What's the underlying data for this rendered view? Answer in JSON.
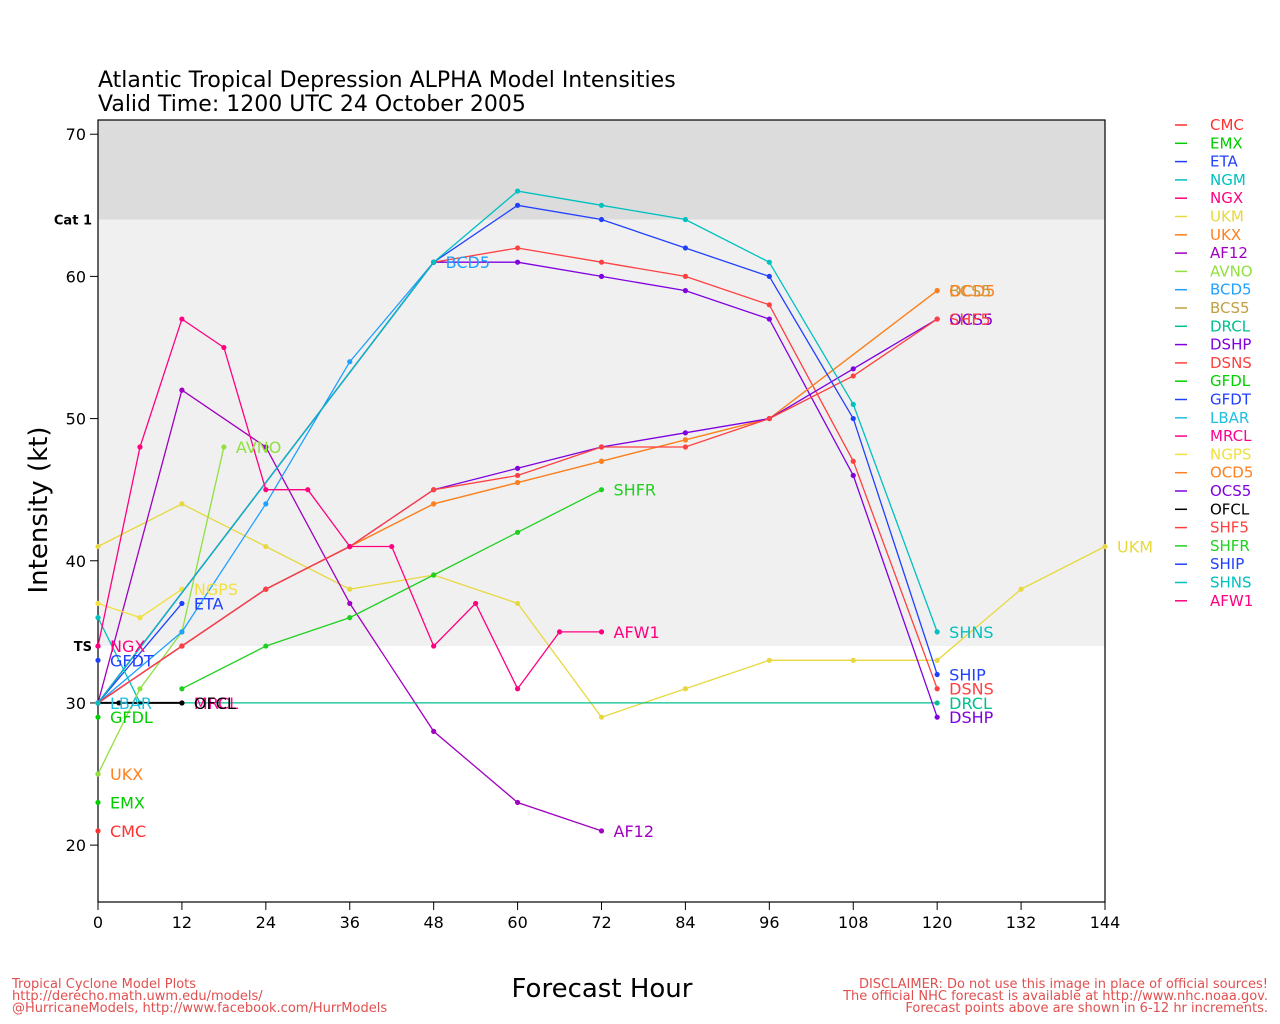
{
  "title": {
    "line1": "Atlantic Tropical Depression ALPHA Model Intensities",
    "line2": "Valid Time: 1200 UTC 24 October 2005"
  },
  "footer": {
    "left": [
      "Tropical Cyclone Model Plots",
      "http://derecho.math.uwm.edu/models/",
      "@HurricaneModels, http://www.facebook.com/HurrModels"
    ],
    "right": [
      "DISCLAIMER: Do not use this image in place of official sources!",
      "The official NHC forecast is available at http://www.nhc.noaa.gov.",
      "Forecast points above are shown in 6-12 hr increments."
    ]
  },
  "chart_data": {
    "type": "line",
    "title": "Atlantic Tropical Depression ALPHA Model Intensities",
    "subtitle": "Valid Time: 1200 UTC 24 October 2005",
    "xlabel": "Forecast Hour",
    "ylabel": "Intensity (kt)",
    "xlim": [
      0,
      144
    ],
    "ylim": [
      16,
      71
    ],
    "xticks": [
      0,
      12,
      24,
      36,
      48,
      60,
      72,
      84,
      96,
      108,
      120,
      132,
      144
    ],
    "yticks": [
      20,
      30,
      40,
      50,
      60,
      70
    ],
    "bands": [
      {
        "label": "Cat 1",
        "from": 64,
        "to": 71,
        "color": "#dcdcdc"
      },
      {
        "label": "TS",
        "from": 34,
        "to": 64,
        "color": "#f0f0f0"
      }
    ],
    "legend_position": "right",
    "series": [
      {
        "name": "CMC",
        "color": "#ff3030",
        "end_label": "CMC",
        "points": [
          [
            0,
            21
          ]
        ]
      },
      {
        "name": "EMX",
        "color": "#00cc00",
        "end_label": "EMX",
        "points": [
          [
            0,
            23
          ]
        ]
      },
      {
        "name": "ETA",
        "color": "#2040ff",
        "end_label": "ETA",
        "points": [
          [
            0,
            30
          ],
          [
            12,
            37
          ]
        ]
      },
      {
        "name": "NGM",
        "color": "#00c0c0",
        "end_label": "",
        "points": [
          [
            0,
            36
          ],
          [
            6,
            30
          ]
        ]
      },
      {
        "name": "NGX",
        "color": "#ff0080",
        "end_label": "NGX",
        "points": [
          [
            0,
            34
          ]
        ]
      },
      {
        "name": "UKM",
        "color": "#e8d840",
        "end_label": "UKM",
        "points": [
          [
            0,
            41
          ],
          [
            12,
            44
          ],
          [
            24,
            41
          ],
          [
            36,
            38
          ],
          [
            48,
            39
          ],
          [
            60,
            37
          ],
          [
            72,
            29
          ],
          [
            84,
            31
          ],
          [
            96,
            33
          ],
          [
            108,
            33
          ],
          [
            120,
            33
          ],
          [
            132,
            38
          ],
          [
            144,
            41
          ]
        ]
      },
      {
        "name": "UKX",
        "color": "#ff8020",
        "end_label": "UKX",
        "points": [
          [
            0,
            25
          ]
        ]
      },
      {
        "name": "AF12",
        "color": "#a000c0",
        "end_label": "AF12",
        "points": [
          [
            0,
            30
          ],
          [
            12,
            52
          ],
          [
            24,
            48
          ],
          [
            36,
            37
          ],
          [
            48,
            28
          ],
          [
            60,
            23
          ],
          [
            72,
            21
          ]
        ]
      },
      {
        "name": "AVNO",
        "color": "#90e040",
        "end_label": "AVNO",
        "points": [
          [
            0,
            25
          ],
          [
            6,
            31
          ],
          [
            12,
            35
          ],
          [
            18,
            48
          ]
        ]
      },
      {
        "name": "BCD5",
        "color": "#20a0ff",
        "end_label": "BCD5",
        "points": [
          [
            0,
            30
          ],
          [
            12,
            35
          ],
          [
            24,
            44
          ],
          [
            36,
            54
          ],
          [
            48,
            61
          ]
        ]
      },
      {
        "name": "BCS5",
        "color": "#c0a040",
        "end_label": "BCS5",
        "points": [
          [
            0,
            30
          ],
          [
            12,
            34
          ],
          [
            24,
            38
          ],
          [
            36,
            41
          ],
          [
            48,
            44
          ],
          [
            60,
            45.5
          ],
          [
            72,
            47
          ],
          [
            84,
            48.5
          ],
          [
            96,
            50
          ],
          [
            120,
            59
          ]
        ]
      },
      {
        "name": "DRCL",
        "color": "#00c090",
        "end_label": "DRCL",
        "points": [
          [
            0,
            30
          ],
          [
            120,
            30
          ]
        ]
      },
      {
        "name": "DSHP",
        "color": "#8000e0",
        "end_label": "DSHP",
        "points": [
          [
            0,
            30
          ],
          [
            48,
            61
          ],
          [
            60,
            61
          ],
          [
            72,
            60
          ],
          [
            84,
            59
          ],
          [
            96,
            57
          ],
          [
            108,
            46
          ],
          [
            120,
            29
          ]
        ]
      },
      {
        "name": "DSNS",
        "color": "#ff4040",
        "end_label": "DSNS",
        "points": [
          [
            0,
            30
          ],
          [
            48,
            61
          ],
          [
            60,
            62
          ],
          [
            72,
            61
          ],
          [
            84,
            60
          ],
          [
            96,
            58
          ],
          [
            108,
            47
          ],
          [
            120,
            31
          ]
        ]
      },
      {
        "name": "GFDL",
        "color": "#00d000",
        "end_label": "GFDL",
        "points": [
          [
            0,
            29
          ]
        ]
      },
      {
        "name": "GFDT",
        "color": "#2040ff",
        "end_label": "GFDT",
        "points": [
          [
            0,
            33
          ]
        ]
      },
      {
        "name": "LBAR",
        "color": "#20c0e0",
        "end_label": "LBAR",
        "points": [
          [
            0,
            30
          ]
        ]
      },
      {
        "name": "MRCL",
        "color": "#ff0090",
        "end_label": "MRCL",
        "points": [
          [
            0,
            30
          ],
          [
            12,
            30
          ]
        ]
      },
      {
        "name": "NGPS",
        "color": "#f0e040",
        "end_label": "NGPS",
        "points": [
          [
            0,
            37
          ],
          [
            6,
            36
          ],
          [
            12,
            38
          ]
        ]
      },
      {
        "name": "OCD5",
        "color": "#ff8020",
        "end_label": "OCD5",
        "points": [
          [
            0,
            30
          ],
          [
            12,
            34
          ],
          [
            24,
            38
          ],
          [
            36,
            41
          ],
          [
            48,
            44
          ],
          [
            60,
            45.5
          ],
          [
            72,
            47
          ],
          [
            84,
            48.5
          ],
          [
            96,
            50
          ],
          [
            120,
            59
          ]
        ]
      },
      {
        "name": "OCS5",
        "color": "#8000e0",
        "end_label": "OCS5",
        "points": [
          [
            0,
            30
          ],
          [
            12,
            34
          ],
          [
            24,
            38
          ],
          [
            36,
            41
          ],
          [
            48,
            45
          ],
          [
            60,
            46.5
          ],
          [
            72,
            48
          ],
          [
            84,
            49
          ],
          [
            96,
            50
          ],
          [
            108,
            53.5
          ],
          [
            120,
            57
          ]
        ]
      },
      {
        "name": "OFCL",
        "color": "#000000",
        "end_label": "OFCL",
        "points": [
          [
            0,
            30
          ],
          [
            3,
            30
          ],
          [
            12,
            30
          ]
        ]
      },
      {
        "name": "SHF5",
        "color": "#ff4040",
        "end_label": "SHF5",
        "points": [
          [
            0,
            30
          ],
          [
            12,
            34
          ],
          [
            24,
            38
          ],
          [
            36,
            41
          ],
          [
            48,
            45
          ],
          [
            60,
            46
          ],
          [
            72,
            48
          ],
          [
            84,
            48
          ],
          [
            96,
            50
          ],
          [
            108,
            53
          ],
          [
            120,
            57
          ]
        ]
      },
      {
        "name": "SHFR",
        "color": "#20d020",
        "end_label": "SHFR",
        "points": [
          [
            12,
            31
          ],
          [
            24,
            34
          ],
          [
            36,
            36
          ],
          [
            48,
            39
          ],
          [
            60,
            42
          ],
          [
            72,
            45
          ]
        ]
      },
      {
        "name": "SHIP",
        "color": "#2040ff",
        "end_label": "SHIP",
        "points": [
          [
            0,
            30
          ],
          [
            48,
            61
          ],
          [
            60,
            65
          ],
          [
            72,
            64
          ],
          [
            84,
            62
          ],
          [
            96,
            60
          ],
          [
            108,
            50
          ],
          [
            120,
            32
          ]
        ]
      },
      {
        "name": "SHNS",
        "color": "#00c0c0",
        "end_label": "SHNS",
        "points": [
          [
            0,
            30
          ],
          [
            48,
            61
          ],
          [
            60,
            66
          ],
          [
            72,
            65
          ],
          [
            84,
            64
          ],
          [
            96,
            61
          ],
          [
            108,
            51
          ],
          [
            120,
            35
          ]
        ]
      },
      {
        "name": "AFW1",
        "color": "#ff0080",
        "end_label": "AFW1",
        "points": [
          [
            0,
            34
          ],
          [
            6,
            48
          ],
          [
            12,
            57
          ],
          [
            18,
            55
          ],
          [
            24,
            45
          ],
          [
            30,
            45
          ],
          [
            36,
            41
          ],
          [
            42,
            41
          ],
          [
            48,
            34
          ],
          [
            54,
            37
          ],
          [
            60,
            31
          ],
          [
            66,
            35
          ],
          [
            72,
            35
          ]
        ]
      }
    ]
  }
}
